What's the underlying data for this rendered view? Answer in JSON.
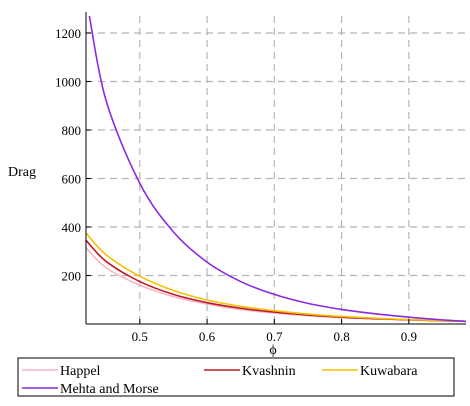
{
  "chart_data": {
    "type": "line",
    "title": "",
    "xlabel": "ϕ",
    "ylabel": "Drag",
    "xlim": [
      0.42,
      0.985
    ],
    "ylim": [
      0,
      1270
    ],
    "xticks": [
      0.5,
      0.6,
      0.7,
      0.8,
      0.9
    ],
    "yticks": [
      200,
      400,
      600,
      800,
      1000,
      1200
    ],
    "grid": true,
    "legend_position": "bottom",
    "series": [
      {
        "name": "Happel",
        "color": "#f4b6c4",
        "x": [
          0.42,
          0.45,
          0.5,
          0.55,
          0.6,
          0.65,
          0.7,
          0.75,
          0.8,
          0.85,
          0.9,
          0.95,
          0.985
        ],
        "y": [
          315,
          232,
          160,
          113,
          82,
          60,
          45,
          34,
          26,
          21,
          17,
          13,
          11
        ]
      },
      {
        "name": "Kvashnin",
        "color": "#c0182a",
        "x": [
          0.42,
          0.45,
          0.5,
          0.55,
          0.6,
          0.65,
          0.7,
          0.75,
          0.8,
          0.85,
          0.9,
          0.95,
          0.985
        ],
        "y": [
          345,
          258,
          175,
          122,
          88,
          65,
          49,
          37,
          28,
          22,
          17,
          13,
          11
        ]
      },
      {
        "name": "Kuwabara",
        "color": "#f2c200",
        "x": [
          0.42,
          0.45,
          0.5,
          0.55,
          0.6,
          0.65,
          0.7,
          0.75,
          0.8,
          0.85,
          0.9,
          0.95,
          0.985
        ],
        "y": [
          375,
          285,
          197,
          138,
          99,
          73,
          55,
          41,
          31,
          24,
          18,
          14,
          11
        ]
      },
      {
        "name": "Mehta and Morse",
        "color": "#8a2be2",
        "x": [
          0.425,
          0.45,
          0.5,
          0.55,
          0.6,
          0.65,
          0.7,
          0.75,
          0.8,
          0.85,
          0.9,
          0.95,
          0.985
        ],
        "y": [
          1270,
          920,
          580,
          380,
          255,
          175,
          122,
          85,
          60,
          42,
          28,
          17,
          11
        ]
      }
    ]
  }
}
